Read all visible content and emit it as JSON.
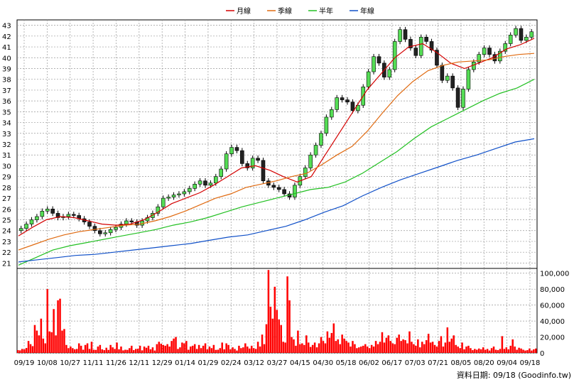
{
  "legend": [
    {
      "label": "月線",
      "color": "#d40000"
    },
    {
      "label": "季線",
      "color": "#e06a10"
    },
    {
      "label": "半年",
      "color": "#22c022"
    },
    {
      "label": "年線",
      "color": "#1050c8"
    }
  ],
  "footer_note": "資料日期: 09/18 (Goodinfo.tw)",
  "colors": {
    "up_candle": "#55dd55",
    "down_candle": "#222222",
    "volume": "#ff0000",
    "grid": "#999999"
  },
  "chart_data": [
    {
      "type": "line",
      "title": "",
      "x_tick_labels": [
        "09/19",
        "10/08",
        "10/27",
        "11/11",
        "11/26",
        "12/11",
        "12/29",
        "01/14",
        "01/29",
        "02/24",
        "03/12",
        "03/27",
        "04/15",
        "04/30",
        "05/18",
        "06/02",
        "06/17",
        "07/03",
        "07/21",
        "08/05",
        "08/20",
        "09/04",
        "09/18"
      ],
      "y_tick_labels": [
        "21",
        "22",
        "23",
        "24",
        "25",
        "26",
        "27",
        "28",
        "29",
        "30",
        "31",
        "32",
        "33",
        "34",
        "35",
        "36",
        "37",
        "38",
        "39",
        "40",
        "41",
        "42",
        "43"
      ],
      "ylim": [
        20.5,
        43.5
      ],
      "grid": true,
      "legend_placement": "top-center",
      "series": [
        {
          "name": "月線",
          "color": "#d40000",
          "values": [
            23.5,
            24.3,
            25.0,
            25.3,
            25.2,
            24.9,
            24.6,
            24.5,
            24.6,
            25.0,
            25.7,
            26.5,
            27.0,
            27.5,
            28.2,
            29.0,
            29.8,
            30.0,
            29.6,
            29.0,
            28.5,
            29.0,
            31.0,
            33.0,
            35.0,
            37.0,
            38.5,
            40.0,
            41.0,
            41.3,
            40.5,
            39.5,
            39.0,
            39.5,
            40.0,
            40.8,
            41.2,
            41.8
          ]
        },
        {
          "name": "季線",
          "color": "#e06a10",
          "values": [
            22.2,
            22.7,
            23.2,
            23.6,
            23.9,
            24.1,
            24.3,
            24.5,
            24.6,
            24.9,
            25.3,
            25.8,
            26.4,
            27.0,
            27.4,
            28.0,
            28.3,
            28.6,
            29.0,
            29.3,
            30.1,
            31.0,
            31.8,
            33.2,
            34.9,
            36.5,
            37.8,
            38.8,
            39.3,
            39.6,
            39.7,
            39.8,
            40.1,
            40.3,
            40.4
          ]
        },
        {
          "name": "半年",
          "color": "#22c022",
          "values": [
            20.8,
            21.5,
            22.2,
            22.6,
            22.9,
            23.2,
            23.5,
            23.8,
            24.1,
            24.5,
            24.8,
            25.2,
            25.7,
            26.2,
            26.6,
            27.0,
            27.4,
            27.8,
            28.0,
            28.5,
            29.3,
            30.3,
            31.3,
            32.5,
            33.6,
            34.4,
            35.2,
            36.0,
            36.7,
            37.2,
            38.0
          ]
        },
        {
          "name": "年線",
          "color": "#1050c8",
          "values": [
            21.1,
            21.3,
            21.5,
            21.7,
            21.8,
            22.0,
            22.2,
            22.4,
            22.6,
            22.8,
            23.1,
            23.4,
            23.6,
            24.0,
            24.4,
            25.0,
            25.7,
            26.3,
            27.2,
            28.0,
            28.7,
            29.3,
            29.9,
            30.5,
            31.0,
            31.6,
            32.2,
            32.5
          ]
        }
      ],
      "candles_close": [
        24.2,
        24.6,
        25.0,
        25.3,
        25.8,
        26.0,
        25.6,
        25.2,
        25.3,
        25.5,
        25.4,
        25.1,
        24.8,
        24.4,
        24.0,
        23.7,
        23.8,
        24.1,
        24.3,
        24.6,
        24.9,
        24.8,
        24.5,
        24.9,
        25.2,
        25.6,
        26.2,
        27.0,
        27.1,
        27.3,
        27.4,
        27.6,
        27.9,
        28.3,
        28.6,
        28.2,
        28.4,
        29.0,
        29.7,
        31.1,
        31.7,
        31.4,
        30.2,
        29.8,
        30.7,
        30.5,
        28.6,
        28.2,
        28.0,
        27.8,
        27.4,
        27.1,
        28.2,
        29.0,
        29.8,
        31.0,
        31.9,
        33.0,
        34.5,
        35.2,
        36.3,
        36.1,
        35.9,
        35.1,
        35.6,
        37.3,
        38.7,
        40.1,
        39.5,
        38.2,
        38.9,
        41.5,
        42.6,
        41.7,
        40.9,
        40.2,
        41.9,
        41.5,
        40.7,
        39.3,
        37.9,
        38.3,
        37.2,
        35.4,
        37.1,
        38.9,
        39.6,
        40.3,
        40.9,
        40.3,
        39.7,
        40.6,
        41.3,
        42.1,
        42.7,
        41.6,
        41.9,
        42.4
      ],
      "ylabel": ""
    },
    {
      "type": "bar",
      "title": "",
      "y_tick_labels": [
        "0",
        "20,000",
        "40,000",
        "60,000",
        "80,000",
        "100,000"
      ],
      "ylim": [
        0,
        106000
      ],
      "values": [
        3500,
        3200,
        5000,
        4500,
        6200,
        15000,
        11000,
        8500,
        35000,
        28000,
        22000,
        43000,
        18000,
        12000,
        80000,
        27000,
        26000,
        55000,
        22000,
        66000,
        68000,
        28000,
        30000,
        10000,
        6000,
        8000,
        6000,
        4500,
        5000,
        12000,
        9000,
        4000,
        10000,
        12000,
        5000,
        14000,
        4000,
        3800,
        8000,
        10000,
        4500,
        3500,
        6500,
        3800,
        10000,
        7000,
        5000,
        13000,
        4500,
        8000,
        3200,
        4000,
        3800,
        6000,
        9000,
        3500,
        5000,
        5200,
        9000,
        3200,
        8000,
        6500,
        9000,
        4500,
        7000,
        3000,
        11000,
        14000,
        11500,
        10000,
        9000,
        11000,
        8000,
        15000,
        18000,
        20000,
        5000,
        7000,
        13000,
        12000,
        15000,
        4000,
        8000,
        9000,
        11000,
        5000,
        10000,
        6000,
        9000,
        12000,
        4500,
        8000,
        6000,
        10000,
        3800,
        4000,
        6000,
        13000,
        4500,
        12000,
        10000,
        4500,
        7000,
        5000,
        3000,
        9000,
        6000,
        7000,
        12000,
        8000,
        5500,
        9000,
        6000,
        5000,
        14000,
        8000,
        23000,
        11000,
        36000,
        104000,
        58000,
        43000,
        83000,
        54000,
        42000,
        35000,
        14000,
        13000,
        96000,
        66000,
        20000,
        17000,
        9000,
        28000,
        11000,
        12000,
        10000,
        22000,
        13000,
        7500,
        10000,
        13000,
        7000,
        12000,
        20000,
        15000,
        12000,
        27000,
        19000,
        25000,
        37000,
        15000,
        17000,
        11000,
        23000,
        18000,
        15000,
        13000,
        8000,
        15000,
        11000,
        6000,
        7000,
        8000,
        9000,
        11000,
        8000,
        6000,
        10000,
        8000,
        15000,
        11000,
        14000,
        26000,
        13000,
        19000,
        22000,
        15000,
        12000,
        11000,
        19000,
        23000,
        15000,
        17000,
        16000,
        12000,
        27000,
        14000,
        11000,
        9000,
        17000,
        7000,
        14000,
        11000,
        16000,
        24000,
        13000,
        14000,
        10000,
        8000,
        15000,
        21000,
        8000,
        13000,
        32000,
        14000,
        18000,
        22000,
        10000,
        8000,
        6000,
        13000,
        4500,
        8000,
        9000,
        6000,
        3500,
        5000,
        4000,
        5500,
        4500,
        7000,
        4000,
        5000,
        3000,
        6000,
        8000,
        4000,
        3500,
        5000,
        21000,
        5000,
        7000,
        4500,
        9000,
        17000,
        8000,
        4000,
        6500,
        5500,
        4000,
        3000,
        3500,
        5500,
        3000,
        4500,
        5500
      ]
    }
  ]
}
